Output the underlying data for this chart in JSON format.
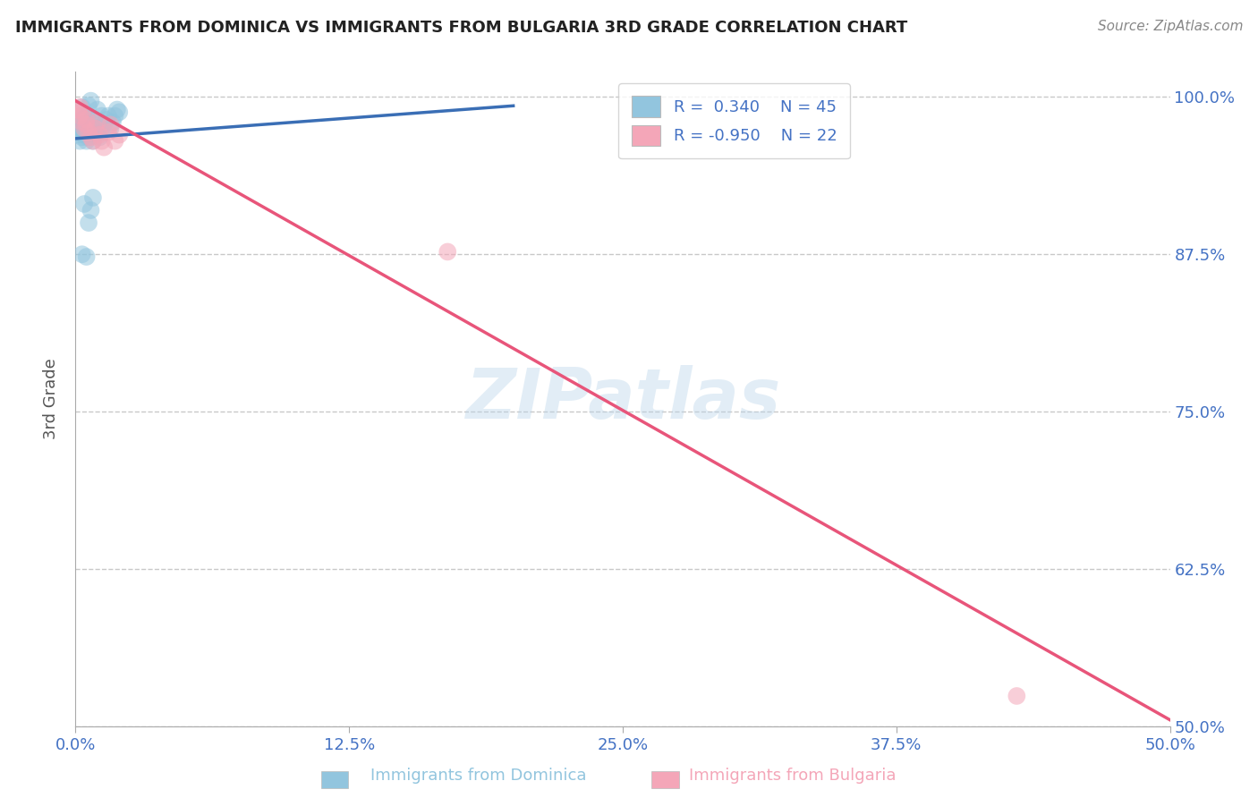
{
  "title": "IMMIGRANTS FROM DOMINICA VS IMMIGRANTS FROM BULGARIA 3RD GRADE CORRELATION CHART",
  "source": "Source: ZipAtlas.com",
  "ylabel": "3rd Grade",
  "xlabel_ticks": [
    "0.0%",
    "12.5%",
    "25.0%",
    "37.5%",
    "50.0%"
  ],
  "xlabel_vals": [
    0.0,
    0.125,
    0.25,
    0.375,
    0.5
  ],
  "ylabel_ticks": [
    "50.0%",
    "62.5%",
    "75.0%",
    "87.5%",
    "100.0%"
  ],
  "ylabel_vals": [
    0.5,
    0.625,
    0.75,
    0.875,
    1.0
  ],
  "xlim": [
    0.0,
    0.5
  ],
  "ylim": [
    0.5,
    1.02
  ],
  "blue_R": 0.34,
  "blue_N": 45,
  "pink_R": -0.95,
  "pink_N": 22,
  "blue_color": "#92c5de",
  "pink_color": "#f4a6b8",
  "blue_line_color": "#3a6eb5",
  "pink_line_color": "#e8557a",
  "watermark": "ZIPatlas",
  "title_color": "#222222",
  "axis_label_color": "#555555",
  "tick_color": "#4472C4",
  "grid_color": "#c8c8c8",
  "blue_x": [
    0.001,
    0.001,
    0.002,
    0.002,
    0.002,
    0.003,
    0.003,
    0.003,
    0.004,
    0.004,
    0.004,
    0.005,
    0.005,
    0.005,
    0.006,
    0.006,
    0.007,
    0.007,
    0.008,
    0.008,
    0.009,
    0.01,
    0.01,
    0.011,
    0.012,
    0.013,
    0.014,
    0.015,
    0.016,
    0.017,
    0.018,
    0.019,
    0.02,
    0.005,
    0.006,
    0.007,
    0.008,
    0.003,
    0.004,
    0.005,
    0.006,
    0.007,
    0.003,
    0.01,
    0.012
  ],
  "blue_y": [
    0.97,
    0.975,
    0.965,
    0.972,
    0.98,
    0.968,
    0.975,
    0.982,
    0.97,
    0.978,
    0.985,
    0.965,
    0.972,
    0.98,
    0.968,
    0.975,
    0.97,
    0.978,
    0.965,
    0.972,
    0.97,
    0.975,
    0.98,
    0.968,
    0.972,
    0.978,
    0.982,
    0.985,
    0.975,
    0.98,
    0.985,
    0.99,
    0.988,
    0.873,
    0.9,
    0.91,
    0.92,
    0.875,
    0.915,
    0.985,
    0.993,
    0.997,
    0.992,
    0.99,
    0.985
  ],
  "pink_x": [
    0.001,
    0.002,
    0.002,
    0.003,
    0.003,
    0.004,
    0.005,
    0.005,
    0.006,
    0.007,
    0.008,
    0.009,
    0.01,
    0.011,
    0.012,
    0.013,
    0.015,
    0.016,
    0.018,
    0.02,
    0.17,
    0.43
  ],
  "pink_y": [
    0.99,
    0.985,
    0.992,
    0.98,
    0.988,
    0.975,
    0.982,
    0.978,
    0.972,
    0.968,
    0.965,
    0.975,
    0.98,
    0.97,
    0.965,
    0.96,
    0.972,
    0.978,
    0.965,
    0.97,
    0.877,
    0.524
  ],
  "pink_line_x0": 0.0,
  "pink_line_y0": 0.997,
  "pink_line_x1": 0.5,
  "pink_line_y1": 0.505,
  "blue_line_x0": 0.0,
  "blue_line_y0": 0.967,
  "blue_line_x1": 0.2,
  "blue_line_y1": 0.993
}
